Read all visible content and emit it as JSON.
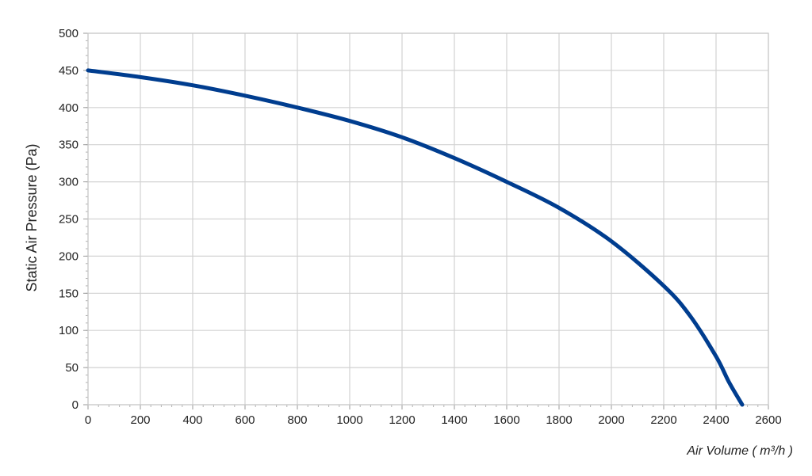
{
  "chart_data": {
    "type": "line",
    "xlabel": "Air Volume ( m³/h )",
    "ylabel": "Static Air Pressure  (Pa)",
    "xlim": [
      0,
      2600
    ],
    "ylim": [
      0,
      500
    ],
    "xticks": [
      "0",
      "200",
      "400",
      "600",
      "800",
      "1000",
      "1200",
      "1400",
      "1600",
      "1800",
      "2000",
      "2200",
      "2400",
      "2600"
    ],
    "yticks": [
      "0",
      "50",
      "100",
      "150",
      "200",
      "250",
      "300",
      "350",
      "400",
      "450",
      "500"
    ],
    "grid": true,
    "series": [
      {
        "color": "#003d8f",
        "x": [
          0,
          200,
          400,
          600,
          800,
          1000,
          1200,
          1400,
          1600,
          1800,
          2000,
          2200,
          2300,
          2400,
          2450,
          2500
        ],
        "y": [
          450,
          441,
          430,
          416,
          400,
          382,
          360,
          332,
          300,
          265,
          220,
          160,
          120,
          65,
          30,
          0
        ]
      }
    ]
  }
}
